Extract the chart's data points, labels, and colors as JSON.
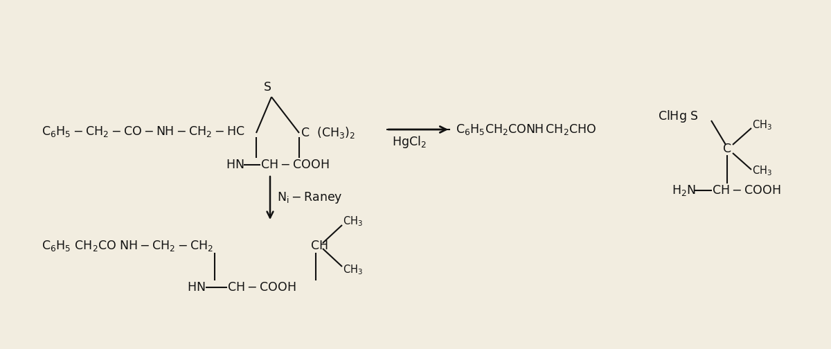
{
  "bg_color": "#f2ede0",
  "text_color": "#111111",
  "fs": 12.5,
  "fss": 10.5
}
